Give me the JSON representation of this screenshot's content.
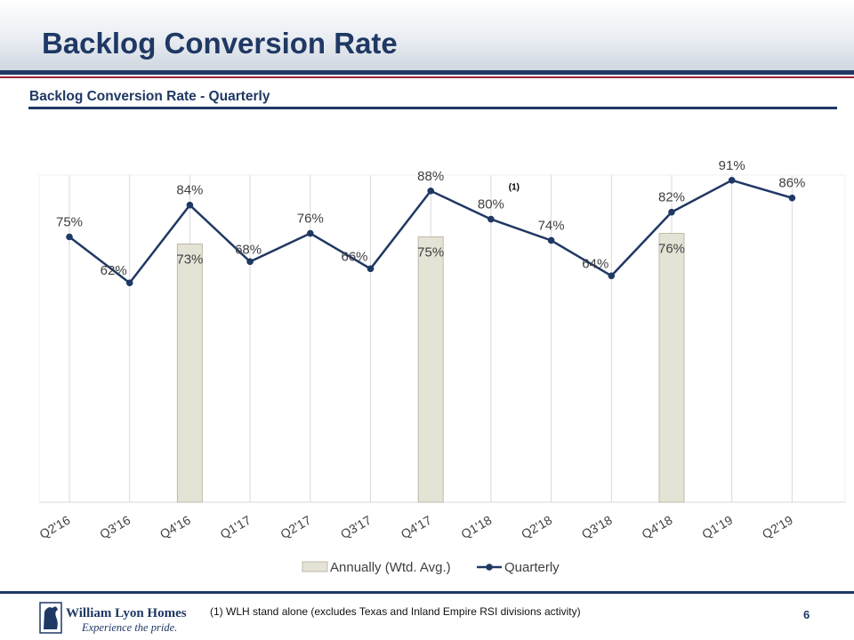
{
  "page": {
    "title": "Backlog Conversion Rate",
    "subtitle": "Backlog Conversion Rate - Quarterly",
    "footnote": "(1)   WLH stand alone (excludes Texas and Inland Empire RSI divisions activity)",
    "page_number": "6",
    "logo_text": "William Lyon Homes",
    "logo_tagline": "Experience the pride."
  },
  "colors": {
    "navy": "#1f3864",
    "red": "#9b2335",
    "line": "#1f3864",
    "bar_fill": "#e5e2d6",
    "bar_stroke": "#bfbba8",
    "grid": "#d9d9d9",
    "label": "#404040"
  },
  "chart_data": {
    "type": "line",
    "title": "Backlog Conversion Rate - Quarterly",
    "categories": [
      "Q2'16",
      "Q3'16",
      "Q4'16",
      "Q1'17",
      "Q2'17",
      "Q3'17",
      "Q4'17",
      "Q1'18",
      "Q2'18",
      "Q3'18",
      "Q4'18",
      "Q1'19",
      "Q2'19"
    ],
    "ylim": [
      0,
      100
    ],
    "y_unit": "%",
    "series": [
      {
        "name": "Annually (Wtd. Avg.)",
        "kind": "bar",
        "values": [
          null,
          null,
          73,
          null,
          null,
          null,
          75,
          null,
          null,
          null,
          76,
          null,
          null
        ],
        "labels": [
          null,
          null,
          "73%",
          null,
          null,
          null,
          "75%",
          null,
          null,
          null,
          "76%",
          null,
          null
        ]
      },
      {
        "name": "Quarterly",
        "kind": "line",
        "values": [
          75,
          62,
          84,
          68,
          76,
          66,
          88,
          80,
          74,
          64,
          82,
          91,
          86
        ],
        "labels": [
          "75%",
          "62%",
          "84%",
          "68%",
          "76%",
          "66%",
          "88%",
          "80%",
          "74%",
          "64%",
          "82%",
          "91%",
          "86%"
        ]
      }
    ],
    "annotations": [
      {
        "category": "Q1'18",
        "text": "(1)"
      }
    ],
    "legend": {
      "position": "bottom",
      "entries": [
        "Annually (Wtd. Avg.)",
        "Quarterly"
      ]
    }
  }
}
